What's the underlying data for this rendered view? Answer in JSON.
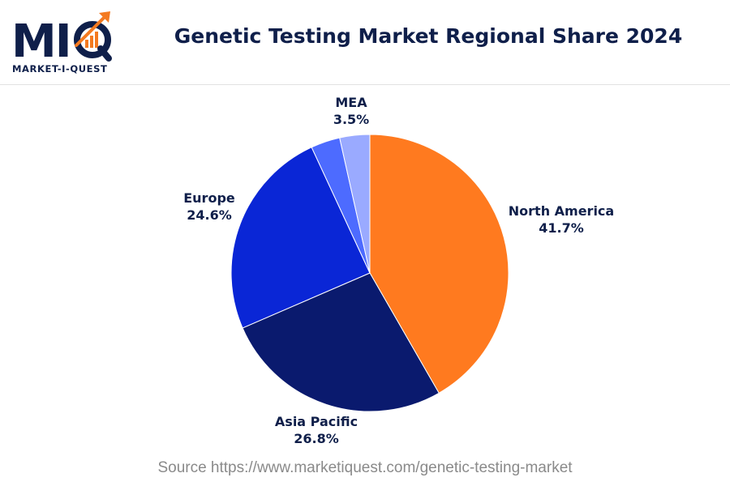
{
  "logo": {
    "mark_text": "MIQ",
    "subtitle": "MARKET-I-QUEST"
  },
  "colors": {
    "navy": "#0f1f4a",
    "orange": "#f47a20",
    "north_america": "#ff7a1f",
    "asia_pacific": "#0a1a6e",
    "europe": "#0a26d6",
    "mea_1": "#4d6bff",
    "mea_2": "#9aaaff"
  },
  "source": "Source https://www.marketiquest.com/genetic-testing-market",
  "chart_data": {
    "type": "pie",
    "title": "Genetic Testing Market Regional Share 2024",
    "slices": [
      {
        "label": "North America",
        "value": 41.7,
        "display": "41.7%",
        "color": "#ff7a1f"
      },
      {
        "label": "Asia Pacific",
        "value": 26.8,
        "display": "26.8%",
        "color": "#0a1a6e"
      },
      {
        "label": "Europe",
        "value": 24.6,
        "display": "24.6%",
        "color": "#0a26d6"
      },
      {
        "label": "",
        "value": 3.4,
        "display": "",
        "color": "#4d6bff"
      },
      {
        "label": "MEA",
        "value": 3.5,
        "display": "3.5%",
        "color": "#9aaaff"
      }
    ],
    "legend": "none",
    "data_labels": "outside"
  }
}
